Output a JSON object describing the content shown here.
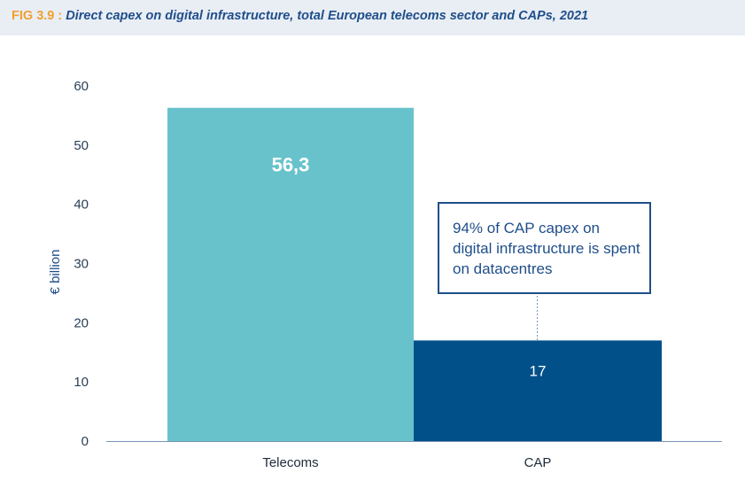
{
  "header": {
    "fig_label": "FIG 3.9 :",
    "title": "Direct capex on digital infrastructure, total European telecoms sector and CAPs, 2021"
  },
  "colors": {
    "telecoms": "#68c2cc",
    "cap": "#02508a",
    "accent": "#f0a030",
    "title": "#1f4e8a",
    "axis": "#7a95b5"
  },
  "chart_data": {
    "type": "bar",
    "categories": [
      "Telecoms",
      "CAP"
    ],
    "values": [
      56.3,
      17
    ],
    "data_labels": [
      "56,3",
      "17"
    ],
    "ylabel": "€ billion",
    "ylim": [
      0,
      60
    ],
    "yticks": [
      0,
      10,
      20,
      30,
      40,
      50,
      60
    ],
    "grid": false,
    "annotation": "94% of CAP capex on digital infrastructure is spent on datacentres"
  }
}
